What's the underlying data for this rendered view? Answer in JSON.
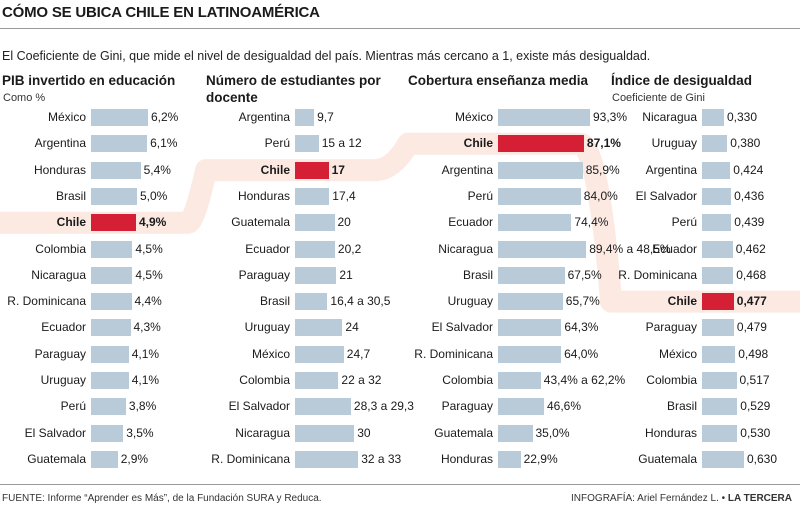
{
  "title": "CÓMO SE UBICA CHILE EN LATINOAMÉRICA",
  "intro": "El Coeficiente de Gini, que mide el nivel de desigualdad del país. Mientras más cercano a 1, existe más desigualdad.",
  "colors": {
    "bar": "#b9cbd9",
    "highlight": "#d51f35",
    "band": "#fbe9e2"
  },
  "highlight": "Chile",
  "chart_data": [
    {
      "type": "bar",
      "title": "PIB invertido en educación",
      "subtitle": "Como %",
      "categories": [
        "México",
        "Argentina",
        "Honduras",
        "Brasil",
        "Chile",
        "Colombia",
        "Nicaragua",
        "R. Dominicana",
        "Ecuador",
        "Paraguay",
        "Uruguay",
        "Perú",
        "El Salvador",
        "Guatemala"
      ],
      "values": [
        6.2,
        6.1,
        5.4,
        5.0,
        4.9,
        4.5,
        4.5,
        4.4,
        4.3,
        4.1,
        4.1,
        3.8,
        3.5,
        2.9
      ],
      "labels": [
        "6,2%",
        "6,1%",
        "5,4%",
        "5,0%",
        "4,9%",
        "4,5%",
        "4,5%",
        "4,4%",
        "4,3%",
        "4,1%",
        "4,1%",
        "3,8%",
        "3,5%",
        "2,9%"
      ],
      "xlim": [
        0,
        6.2
      ]
    },
    {
      "type": "bar",
      "title": "Número de estudiantes por docente",
      "subtitle": "",
      "categories": [
        "Argentina",
        "Perú",
        "Chile",
        "Honduras",
        "Guatemala",
        "Ecuador",
        "Paraguay",
        "Brasil",
        "Uruguay",
        "México",
        "Colombia",
        "El Salvador",
        "Nicaragua",
        "R. Dominicana"
      ],
      "values": [
        9.7,
        12,
        17,
        17.4,
        20,
        20.2,
        21,
        16.4,
        24,
        24.7,
        22,
        28.3,
        30,
        32
      ],
      "labels": [
        "9,7",
        "15 a 12",
        "17",
        "17,4",
        "20",
        "20,2",
        "21",
        "16,4 a 30,5",
        "24",
        "24,7",
        "22 a 32",
        "28,3 a 29,3",
        "30",
        "32 a 33"
      ],
      "xlim": [
        0,
        38
      ]
    },
    {
      "type": "bar",
      "title": "Cobertura enseñanza media",
      "subtitle": "",
      "categories": [
        "México",
        "Chile",
        "Argentina",
        "Perú",
        "Ecuador",
        "Nicaragua",
        "Brasil",
        "Uruguay",
        "El Salvador",
        "R. Dominicana",
        "Colombia",
        "Paraguay",
        "Guatemala",
        "Honduras"
      ],
      "values": [
        93.3,
        87.1,
        85.9,
        84.0,
        74.4,
        89.4,
        67.5,
        65.7,
        64.3,
        64.0,
        43.4,
        46.6,
        35.0,
        22.9
      ],
      "labels": [
        "93,3%",
        "87,1%",
        "85,9%",
        "84,0%",
        "74,4%",
        "89,4% a 48,5%",
        "67,5%",
        "65,7%",
        "64,3%",
        "64,0%",
        "43,4% a 62,2%",
        "46,6%",
        "35,0%",
        "22,9%"
      ],
      "xlim": [
        0,
        93.3
      ]
    },
    {
      "type": "bar",
      "title": "Índice de desigualdad",
      "subtitle": "Coeficiente de Gini",
      "categories": [
        "Nicaragua",
        "Uruguay",
        "Argentina",
        "El Salvador",
        "Perú",
        "Ecuador",
        "R. Dominicana",
        "Chile",
        "Paraguay",
        "México",
        "Colombia",
        "Brasil",
        "Honduras",
        "Guatemala"
      ],
      "values": [
        0.33,
        0.38,
        0.424,
        0.436,
        0.439,
        0.462,
        0.468,
        0.477,
        0.479,
        0.498,
        0.517,
        0.529,
        0.53,
        0.63
      ],
      "labels": [
        "0,330",
        "0,380",
        "0,424",
        "0,436",
        "0,439",
        "0,462",
        "0,468",
        "0,477",
        "0,479",
        "0,498",
        "0,517",
        "0,529",
        "0,530",
        "0,630"
      ],
      "xlim": [
        0,
        0.63
      ]
    }
  ],
  "footer": {
    "source": "FUENTE: Informe “Aprender es Más”, de la Fundación SURA y Reduca.",
    "credit_prefix": "INFOGRAFÍA: Ariel Fernández L. •",
    "credit_brand": "LA TERCERA"
  }
}
